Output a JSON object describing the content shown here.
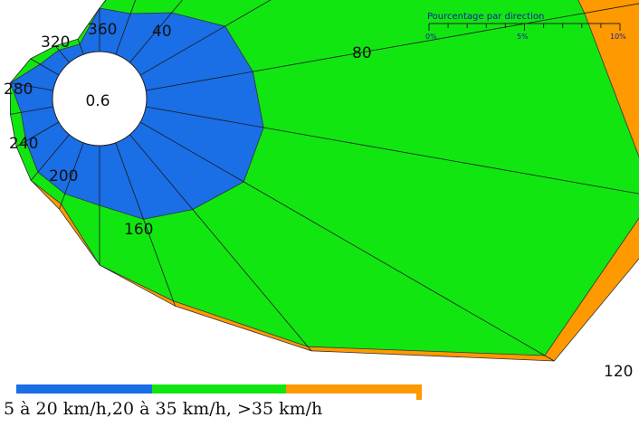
{
  "chart_data": {
    "type": "wind-rose",
    "title": "",
    "center_label": "0.6",
    "direction_labels": [
      "360",
      "40",
      "80",
      "120",
      "160",
      "200",
      "240",
      "280",
      "320"
    ],
    "scale": {
      "title": "Pourcentage par direction",
      "ticks": [
        "0%",
        "5%",
        "10%"
      ],
      "max_percent": 10
    },
    "legend": {
      "text": "5 à 20 km/h,20 à 35 km/h, >35 km/h",
      "classes": [
        {
          "range": "5 à 20 km/h",
          "color": "#1a6ee6"
        },
        {
          "range": "20 à 35 km/h",
          "color": "#11e611"
        },
        {
          "range": ">35 km/h",
          "color": "#ff9900"
        }
      ]
    },
    "series": [
      {
        "range": "5 à 20 km/h",
        "color": "#1a6ee6",
        "cumulative_percent": [
          0.8,
          0.8,
          1.2,
          1.8,
          2.0,
          2.2,
          2.2,
          1.8,
          1.5,
          1.1,
          1.0,
          0.9,
          0.7,
          0.6,
          0.8,
          0.4,
          0.3,
          0.2
        ]
      },
      {
        "range": "20 à 35 km/h",
        "color": "#11e611",
        "cumulative_percent": [
          0.8,
          2.4,
          5.6,
          7.9,
          8.2,
          9.5,
          8.6,
          5.1,
          3.1,
          2.2,
          1.2,
          1.1,
          0.9,
          0.8,
          0.8,
          0.6,
          0.4,
          0.3
        ]
      },
      {
        "range": ">35 km/h",
        "color": "#ff9900",
        "cumulative_percent": [
          0.8,
          2.6,
          6.1,
          9.5,
          10.0,
          10.1,
          8.8,
          5.2,
          3.2,
          2.2,
          1.3,
          1.1,
          0.9,
          0.8,
          0.8,
          0.6,
          0.4,
          0.3
        ]
      }
    ]
  }
}
